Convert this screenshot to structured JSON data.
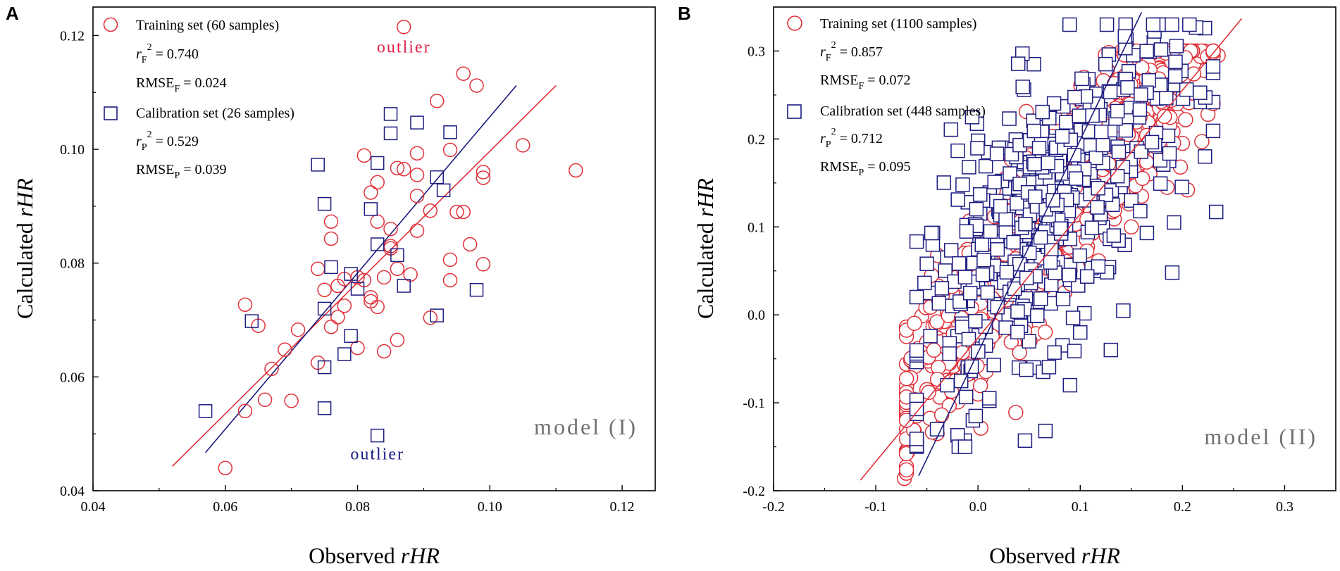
{
  "chart_data": [
    {
      "type": "scatter",
      "panel_label": "A",
      "xlabel_prefix": "Observed ",
      "xlabel_var": "rHR",
      "ylabel_prefix": "Calculated ",
      "ylabel_var": "rHR",
      "xlim": [
        0.04,
        0.125
      ],
      "ylim": [
        0.04,
        0.125
      ],
      "x_ticks": [
        "0.04",
        "0.06",
        "0.08",
        "0.10",
        "0.12"
      ],
      "x_tick_values": [
        0.04,
        0.06,
        0.08,
        0.1,
        0.12
      ],
      "y_ticks": [
        "0.04",
        "0.06",
        "0.08",
        "0.10",
        "0.12"
      ],
      "y_tick_values": [
        0.04,
        0.06,
        0.08,
        0.1,
        0.12
      ],
      "model_label": "model (I)",
      "legend": {
        "training": "Training set (60 samples)",
        "r2_symbol": "r",
        "r2_sub_train": "F",
        "r2_train_value": " = 0.740",
        "rmse_label": "RMSE",
        "rmse_train_value": " = 0.024",
        "calibration": "Calibration set (26 samples)",
        "r2_sub_cal": "P",
        "r2_cal_value": " = 0.529",
        "rmse_cal_value": " = 0.039"
      },
      "annotations": [
        {
          "text": "outlier",
          "x": 0.087,
          "y": 0.117,
          "color": "#e0244a"
        },
        {
          "text": "outlier",
          "x": 0.083,
          "y": 0.0455,
          "color": "#1c1c80"
        }
      ],
      "series": [
        {
          "name": "Training set",
          "marker": "circle",
          "color": "#e0303a",
          "points": [
            [
              0.087,
              0.1215
            ],
            [
              0.096,
              0.1133
            ],
            [
              0.098,
              0.1112
            ],
            [
              0.092,
              0.1085
            ],
            [
              0.105,
              0.1007
            ],
            [
              0.094,
              0.0999
            ],
            [
              0.089,
              0.0993
            ],
            [
              0.081,
              0.0989
            ],
            [
              0.086,
              0.0967
            ],
            [
              0.087,
              0.0965
            ],
            [
              0.099,
              0.096
            ],
            [
              0.113,
              0.0963
            ],
            [
              0.089,
              0.0955
            ],
            [
              0.099,
              0.095
            ],
            [
              0.083,
              0.0942
            ],
            [
              0.082,
              0.0924
            ],
            [
              0.089,
              0.0918
            ],
            [
              0.091,
              0.0892
            ],
            [
              0.095,
              0.089
            ],
            [
              0.096,
              0.089
            ],
            [
              0.076,
              0.0873
            ],
            [
              0.083,
              0.0873
            ],
            [
              0.085,
              0.086
            ],
            [
              0.089,
              0.0857
            ],
            [
              0.076,
              0.0843
            ],
            [
              0.097,
              0.0833
            ],
            [
              0.085,
              0.0826
            ],
            [
              0.094,
              0.0806
            ],
            [
              0.099,
              0.0798
            ],
            [
              0.074,
              0.079
            ],
            [
              0.086,
              0.079
            ],
            [
              0.084,
              0.0775
            ],
            [
              0.094,
              0.077
            ],
            [
              0.081,
              0.077
            ],
            [
              0.078,
              0.0772
            ],
            [
              0.077,
              0.076
            ],
            [
              0.075,
              0.0753
            ],
            [
              0.082,
              0.074
            ],
            [
              0.082,
              0.0733
            ],
            [
              0.063,
              0.0727
            ],
            [
              0.083,
              0.0723
            ],
            [
              0.078,
              0.0725
            ],
            [
              0.091,
              0.0704
            ],
            [
              0.071,
              0.0683
            ],
            [
              0.065,
              0.069
            ],
            [
              0.076,
              0.0688
            ],
            [
              0.086,
              0.0665
            ],
            [
              0.069,
              0.0648
            ],
            [
              0.08,
              0.0651
            ],
            [
              0.084,
              0.0645
            ],
            [
              0.074,
              0.0625
            ],
            [
              0.067,
              0.0614
            ],
            [
              0.066,
              0.056
            ],
            [
              0.07,
              0.0558
            ],
            [
              0.063,
              0.054
            ],
            [
              0.06,
              0.044
            ],
            [
              0.077,
              0.0705
            ],
            [
              0.08,
              0.0775
            ],
            [
              0.088,
              0.078
            ],
            [
              0.085,
              0.083
            ]
          ]
        },
        {
          "name": "Calibration set",
          "marker": "square",
          "color": "#1c1c80",
          "points": [
            [
              0.085,
              0.1062
            ],
            [
              0.089,
              0.1047
            ],
            [
              0.085,
              0.1028
            ],
            [
              0.094,
              0.103
            ],
            [
              0.074,
              0.0973
            ],
            [
              0.083,
              0.0976
            ],
            [
              0.092,
              0.0951
            ],
            [
              0.093,
              0.0928
            ],
            [
              0.075,
              0.0904
            ],
            [
              0.082,
              0.0895
            ],
            [
              0.083,
              0.0833
            ],
            [
              0.086,
              0.0814
            ],
            [
              0.076,
              0.0793
            ],
            [
              0.079,
              0.0781
            ],
            [
              0.098,
              0.0753
            ],
            [
              0.075,
              0.072
            ],
            [
              0.092,
              0.0708
            ],
            [
              0.064,
              0.0698
            ],
            [
              0.079,
              0.0672
            ],
            [
              0.078,
              0.064
            ],
            [
              0.075,
              0.0617
            ],
            [
              0.057,
              0.054
            ],
            [
              0.075,
              0.0545
            ],
            [
              0.083,
              0.0497
            ],
            [
              0.087,
              0.076
            ],
            [
              0.08,
              0.0755
            ]
          ]
        }
      ],
      "fit_lines": [
        {
          "name": "Training fit",
          "color": "#e0303a",
          "x": [
            0.052,
            0.11
          ],
          "y": [
            0.0443,
            0.1112
          ]
        },
        {
          "name": "Calibration fit",
          "color": "#1c1c80",
          "x": [
            0.057,
            0.104
          ],
          "y": [
            0.0467,
            0.1112
          ]
        }
      ]
    },
    {
      "type": "scatter",
      "panel_label": "B",
      "xlabel_prefix": "Observed ",
      "xlabel_var": "rHR",
      "ylabel_prefix": "Calculated ",
      "ylabel_var": "rHR",
      "xlim": [
        -0.2,
        0.35
      ],
      "ylim": [
        -0.2,
        0.35
      ],
      "x_ticks": [
        "-0.2",
        "-0.1",
        "0.0",
        "0.1",
        "0.2",
        "0.3"
      ],
      "x_tick_values": [
        -0.2,
        -0.1,
        0.0,
        0.1,
        0.2,
        0.3
      ],
      "y_ticks": [
        "-0.2",
        "-0.1",
        "0.0",
        "0.1",
        "0.2",
        "0.3"
      ],
      "y_tick_values": [
        -0.2,
        -0.1,
        0.0,
        0.1,
        0.2,
        0.3
      ],
      "model_label": "model (II)",
      "legend": {
        "training": "Training set (1100 samples)",
        "r2_symbol": "r",
        "r2_sub_train": "F",
        "r2_train_value": " = 0.857",
        "rmse_label": "RMSE",
        "rmse_train_value": " = 0.072",
        "calibration": "Calibration set (448 samples)",
        "r2_sub_cal": "P",
        "r2_cal_value": " = 0.712",
        "rmse_cal_value": " = 0.095"
      },
      "series": [
        {
          "name": "Training set",
          "marker": "circle",
          "color": "#e0303a",
          "n": 1100,
          "points": [
            [
              -0.072,
              -0.186
            ],
            [
              -0.06,
              -0.115
            ],
            [
              -0.058,
              -0.038
            ],
            [
              -0.05,
              -0.085
            ],
            [
              -0.04,
              -0.135
            ],
            [
              -0.045,
              -0.058
            ],
            [
              -0.038,
              -0.015
            ],
            [
              -0.03,
              0.003
            ],
            [
              -0.03,
              0.04
            ],
            [
              0.235,
              0.295
            ],
            [
              0.222,
              0.243
            ],
            [
              0.225,
              0.228
            ],
            [
              0.219,
              0.197
            ],
            [
              0.205,
              0.142
            ],
            [
              0.195,
              0.226
            ],
            [
              0.185,
              0.232
            ],
            [
              0.185,
              0.145
            ],
            [
              0.198,
              0.168
            ],
            [
              0.172,
              0.215
            ],
            [
              0.16,
              0.135
            ],
            [
              0.15,
              0.1
            ],
            [
              0.14,
              0.188
            ],
            [
              0.125,
              0.115
            ],
            [
              0.11,
              0.098
            ],
            [
              0.11,
              0.06
            ],
            [
              0.09,
              0.05
            ],
            [
              0.08,
              0.085
            ],
            [
              0.07,
              0.025
            ],
            [
              0.06,
              -0.01
            ],
            [
              0.05,
              0.03
            ],
            [
              0.04,
              0.09
            ],
            [
              0.03,
              0.005
            ],
            [
              0.02,
              0.045
            ],
            [
              0.01,
              -0.03
            ],
            [
              0.0,
              0.01
            ],
            [
              -0.01,
              -0.05
            ],
            [
              -0.02,
              0.02
            ],
            [
              -0.01,
              -0.01
            ],
            [
              0.0,
              -0.09
            ],
            [
              0.105,
              0.24
            ],
            [
              0.13,
              0.155
            ],
            [
              0.145,
              0.215
            ],
            [
              0.16,
              0.175
            ],
            [
              0.175,
              0.19
            ],
            [
              0.18,
              0.205
            ],
            [
              0.2,
              0.195
            ]
          ]
        },
        {
          "name": "Calibration set",
          "marker": "square",
          "color": "#1c1c80",
          "n": 448,
          "points": [
            [
              0.222,
              0.326
            ],
            [
              0.172,
              0.31
            ],
            [
              0.108,
              0.268
            ],
            [
              0.128,
              0.296
            ],
            [
              0.045,
              0.256
            ],
            [
              0.103,
              0.262
            ],
            [
              0.142,
              0.256
            ],
            [
              0.175,
              0.246
            ],
            [
              0.218,
              0.242
            ],
            [
              0.233,
              0.117
            ],
            [
              0.222,
              0.18
            ],
            [
              0.19,
              0.048
            ],
            [
              0.098,
              0.195
            ],
            [
              0.08,
              0.175
            ],
            [
              0.11,
              0.16
            ],
            [
              0.15,
              0.13
            ],
            [
              0.12,
              0.11
            ],
            [
              0.08,
              0.105
            ],
            [
              0.06,
              0.085
            ],
            [
              0.04,
              0.14
            ],
            [
              0.02,
              0.12
            ],
            [
              0.01,
              0.06
            ],
            [
              0.0,
              0.03
            ],
            [
              0.03,
              0.0
            ],
            [
              0.05,
              -0.03
            ],
            [
              0.06,
              0.015
            ],
            [
              0.07,
              0.08
            ],
            [
              0.09,
              0.04
            ],
            [
              0.1,
              -0.02
            ],
            [
              0.12,
              0.05
            ],
            [
              0.13,
              -0.04
            ],
            [
              0.04,
              -0.06
            ],
            [
              0.066,
              -0.132
            ],
            [
              0.046,
              -0.143
            ],
            [
              -0.013,
              -0.143
            ],
            [
              -0.005,
              -0.12
            ],
            [
              -0.02,
              -0.137
            ],
            [
              -0.04,
              -0.13
            ],
            [
              -0.03,
              -0.08
            ],
            [
              -0.01,
              -0.06
            ],
            [
              -0.05,
              0.058
            ],
            [
              -0.03,
              0.065
            ],
            [
              -0.048,
              0.025
            ],
            [
              -0.015,
              0.148
            ],
            [
              -0.01,
              0.128
            ],
            [
              0.0,
              0.198
            ],
            [
              0.01,
              0.185
            ],
            [
              0.025,
              0.19
            ],
            [
              0.06,
              0.205
            ],
            [
              0.09,
              -0.08
            ]
          ]
        }
      ],
      "fit_lines": [
        {
          "name": "Training fit",
          "color": "#e0303a",
          "x": [
            -0.115,
            0.258
          ],
          "y": [
            -0.188,
            0.337
          ]
        },
        {
          "name": "Calibration fit",
          "color": "#1c1c80",
          "x": [
            -0.058,
            0.16
          ],
          "y": [
            -0.183,
            0.344
          ]
        }
      ]
    }
  ]
}
